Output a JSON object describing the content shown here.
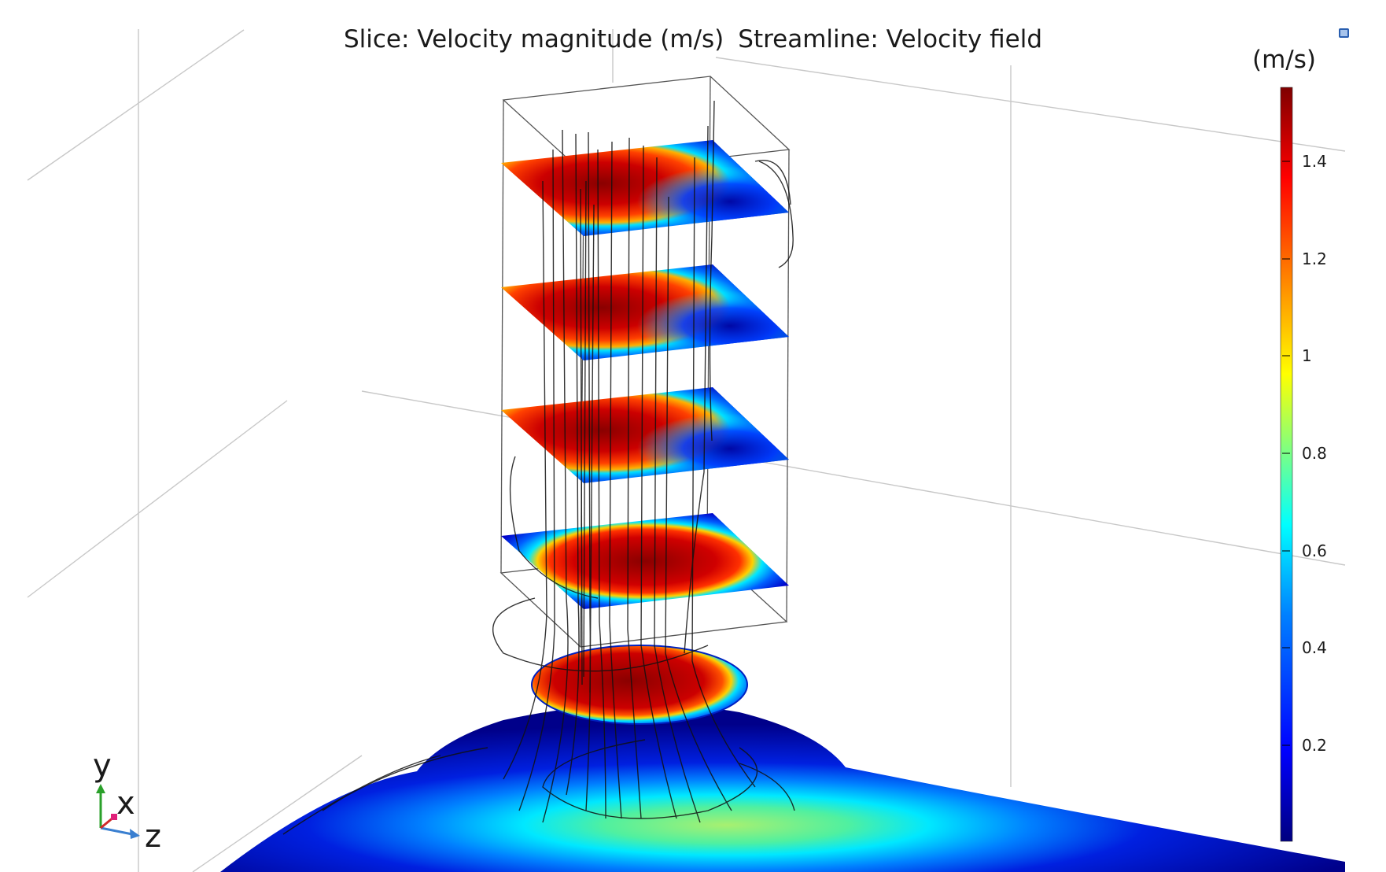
{
  "plot": {
    "title_slice": "Slice: Velocity magnitude (m/s)",
    "title_streamline": "Streamline: Velocity field"
  },
  "colorbar": {
    "unit": "(m/s)",
    "ticks": [
      "1.4",
      "1.2",
      "1",
      "0.8",
      "0.6",
      "0.4",
      "0.2"
    ],
    "colors": [
      "#00007f",
      "#0000ff",
      "#0080ff",
      "#00ffff",
      "#80ff80",
      "#ffff00",
      "#ff8000",
      "#ff0000",
      "#7f0000"
    ]
  },
  "triad": {
    "y": "y",
    "x": "x",
    "z": "z"
  },
  "icons": {
    "corner": "window-restore-icon"
  }
}
